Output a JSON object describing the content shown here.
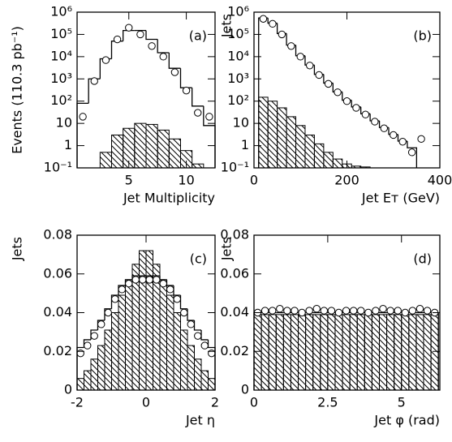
{
  "chart_data": [
    {
      "type": "histogram",
      "label": "(a)",
      "xlabel": "Jet Multiplicity",
      "ylabel": "Events (110.3 pb⁻¹)",
      "log_y": true,
      "xlim": [
        0.5,
        12.5
      ],
      "ylim": [
        0.1,
        1000000
      ],
      "xticks": [
        5,
        10
      ],
      "yticks": [
        {
          "value": 0.1,
          "label": "10⁻¹"
        },
        1,
        10,
        {
          "value": 100,
          "label": "10²"
        },
        {
          "value": 1000,
          "label": "10³"
        },
        {
          "value": 10000,
          "label": "10⁴"
        },
        {
          "value": 100000,
          "label": "10⁵"
        },
        {
          "value": 1000000,
          "label": "10⁶"
        }
      ],
      "bins": [
        0.5,
        1.5,
        2.5,
        3.5,
        4.5,
        5.5,
        6.5,
        7.5,
        8.5,
        9.5,
        10.5,
        11.5,
        12.5
      ],
      "series": [
        {
          "style": "hatched",
          "values": [
            null,
            null,
            0.5,
            3,
            6,
            10,
            9,
            5,
            2,
            0.6,
            0.15,
            null
          ]
        },
        {
          "style": "step",
          "values": [
            80,
            1000,
            8000,
            50000,
            150000,
            150000,
            60000,
            15000,
            3000,
            400,
            60,
            8
          ]
        },
        {
          "style": "points",
          "values": [
            20,
            800,
            7000,
            60000,
            200000,
            100000,
            30000,
            10000,
            2000,
            300,
            30,
            20
          ]
        }
      ]
    },
    {
      "type": "histogram",
      "label": "(b)",
      "xlabel": "Jet Eᴛ (GeV)",
      "ylabel": "Jets",
      "log_y": true,
      "xlim": [
        0,
        400
      ],
      "ylim": [
        0.1,
        1000000
      ],
      "xticks": [
        0,
        200,
        400
      ],
      "yticks": [
        {
          "value": 0.1,
          "label": "10⁻¹"
        },
        1,
        10,
        {
          "value": 100,
          "label": "10²"
        },
        {
          "value": 1000,
          "label": "10³"
        },
        {
          "value": 10000,
          "label": "10⁴"
        },
        {
          "value": 100000,
          "label": "10⁵"
        },
        {
          "value": 1000000,
          "label": "10⁶"
        }
      ],
      "bins": [
        10,
        30,
        50,
        70,
        90,
        110,
        130,
        150,
        170,
        190,
        210,
        230,
        250,
        270,
        290,
        310,
        330,
        350,
        370
      ],
      "series": [
        {
          "style": "hatched",
          "values": [
            150,
            100,
            50,
            20,
            8,
            3,
            1.2,
            0.5,
            0.25,
            0.15,
            0.12,
            0.11,
            null,
            null,
            null,
            null,
            null,
            null
          ]
        },
        {
          "style": "step",
          "values": [
            550000,
            320000,
            110000,
            33000,
            11000,
            4200,
            1600,
            650,
            260,
            110,
            55,
            27,
            13,
            6.5,
            3.2,
            1.6,
            0.8,
            null
          ]
        },
        {
          "style": "points",
          "values": [
            500000,
            300000,
            100000,
            30000,
            10000,
            4000,
            1500,
            600,
            250,
            100,
            50,
            25,
            12,
            6,
            3,
            1.5,
            0.5,
            2
          ]
        }
      ]
    },
    {
      "type": "histogram",
      "label": "(c)",
      "xlabel": "Jet η",
      "ylabel": "Jets",
      "log_y": false,
      "xlim": [
        -2,
        2
      ],
      "ylim": [
        0,
        0.08
      ],
      "xticks": [
        -2,
        0,
        2
      ],
      "yticks": [
        0,
        0.02,
        0.04,
        0.06,
        0.08
      ],
      "bins": [
        -2,
        -1.8,
        -1.6,
        -1.4,
        -1.2,
        -1,
        -0.8,
        -0.6,
        -0.4,
        -0.2,
        0,
        0.2,
        0.4,
        0.6,
        0.8,
        1,
        1.2,
        1.4,
        1.6,
        1.8,
        2
      ],
      "series": [
        {
          "style": "hatched",
          "values": [
            0.006,
            0.01,
            0.016,
            0.023,
            0.031,
            0.04,
            0.049,
            0.057,
            0.065,
            0.072,
            0.072,
            0.065,
            0.057,
            0.049,
            0.04,
            0.031,
            0.023,
            0.016,
            0.01,
            0.006
          ]
        },
        {
          "style": "step",
          "values": [
            0.022,
            0.026,
            0.031,
            0.036,
            0.042,
            0.049,
            0.054,
            0.057,
            0.059,
            0.059,
            0.059,
            0.059,
            0.057,
            0.054,
            0.049,
            0.042,
            0.036,
            0.031,
            0.026,
            0.022
          ]
        },
        {
          "style": "points",
          "values": [
            0.019,
            0.023,
            0.028,
            0.034,
            0.04,
            0.047,
            0.052,
            0.055,
            0.057,
            0.057,
            0.057,
            0.057,
            0.055,
            0.052,
            0.047,
            0.04,
            0.034,
            0.028,
            0.023,
            0.019
          ]
        }
      ]
    },
    {
      "type": "histogram",
      "label": "(d)",
      "xlabel": "Jet φ (rad)",
      "ylabel": "Jets",
      "log_y": false,
      "xlim": [
        0,
        6.3
      ],
      "ylim": [
        0,
        0.08
      ],
      "xticks": [
        0,
        2.5,
        5
      ],
      "yticks": [
        0,
        0.02,
        0.04,
        0.06,
        0.08
      ],
      "bins": [
        0,
        0.25,
        0.5,
        0.75,
        1,
        1.25,
        1.5,
        1.75,
        2,
        2.25,
        2.5,
        2.75,
        3,
        3.25,
        3.5,
        3.75,
        4,
        4.25,
        4.5,
        4.75,
        5,
        5.25,
        5.5,
        5.75,
        6,
        6.25
      ],
      "series": [
        {
          "style": "hatched",
          "values": [
            0.039,
            0.039,
            0.039,
            0.039,
            0.039,
            0.039,
            0.039,
            0.039,
            0.039,
            0.039,
            0.039,
            0.039,
            0.039,
            0.039,
            0.039,
            0.039,
            0.039,
            0.039,
            0.039,
            0.039,
            0.039,
            0.039,
            0.039,
            0.039,
            0.039
          ]
        },
        {
          "style": "step",
          "values": [
            0.04,
            0.04,
            0.04,
            0.04,
            0.04,
            0.04,
            0.04,
            0.04,
            0.04,
            0.04,
            0.04,
            0.04,
            0.04,
            0.04,
            0.04,
            0.04,
            0.04,
            0.04,
            0.04,
            0.04,
            0.04,
            0.04,
            0.04,
            0.04,
            0.04
          ]
        },
        {
          "style": "points",
          "values": [
            0.04,
            0.041,
            0.041,
            0.042,
            0.041,
            0.041,
            0.04,
            0.041,
            0.042,
            0.041,
            0.041,
            0.04,
            0.041,
            0.041,
            0.041,
            0.04,
            0.041,
            0.042,
            0.041,
            0.041,
            0.04,
            0.041,
            0.042,
            0.041,
            0.04
          ]
        }
      ]
    }
  ]
}
